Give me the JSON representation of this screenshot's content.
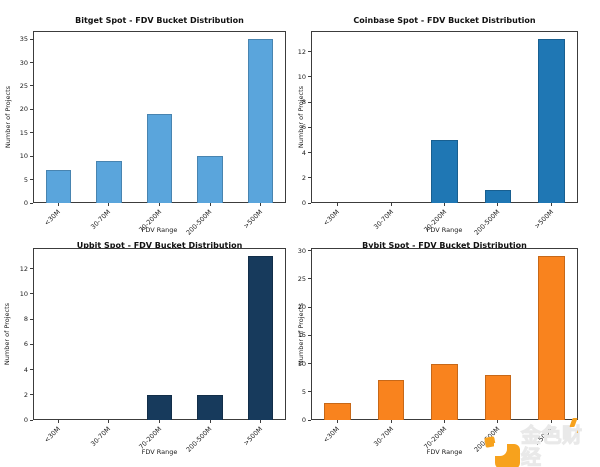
{
  "chart_data": [
    {
      "type": "bar",
      "title": "Bitget Spot - FDV Bucket Distribution",
      "categories": [
        "<30M",
        "30-70M",
        "70-200M",
        "200-500M",
        ">500M"
      ],
      "values": [
        7,
        9,
        19,
        10,
        35
      ],
      "xlabel": "FDV Range",
      "ylabel": "Number of Projects",
      "yticks": [
        0,
        5,
        10,
        15,
        20,
        25,
        30,
        35
      ],
      "ylim": [
        0,
        36.75
      ],
      "bar_color": "#5aa5dc",
      "grid": false,
      "legend": "none"
    },
    {
      "type": "bar",
      "title": "Coinbase Spot - FDV Bucket Distribution",
      "categories": [
        "<30M",
        "30-70M",
        "70-200M",
        "200-500M",
        ">500M"
      ],
      "values": [
        0,
        0,
        5,
        1,
        13
      ],
      "xlabel": "FDV Range",
      "ylabel": "Number of Projects",
      "yticks": [
        0,
        2,
        4,
        6,
        8,
        10,
        12
      ],
      "ylim": [
        0,
        13.65
      ],
      "bar_color": "#1f77b4",
      "grid": false,
      "legend": "none"
    },
    {
      "type": "bar",
      "title": "Upbit Spot - FDV Bucket Distribution",
      "categories": [
        "<30M",
        "30-70M",
        "70-200M",
        "200-500M",
        ">500M"
      ],
      "values": [
        0,
        0,
        2,
        2,
        13
      ],
      "xlabel": "FDV Range",
      "ylabel": "Number of Projects",
      "yticks": [
        0,
        2,
        4,
        6,
        8,
        10,
        12
      ],
      "ylim": [
        0,
        13.65
      ],
      "bar_color": "#173a5c",
      "grid": false,
      "legend": "none"
    },
    {
      "type": "bar",
      "title": "Bybit Spot - FDV Bucket Distribution",
      "categories": [
        "<30M",
        "30-70M",
        "70-200M",
        "200-500M",
        ">500M"
      ],
      "values": [
        3,
        7,
        10,
        8,
        29
      ],
      "xlabel": "FDV Range",
      "ylabel": "Number of Projects",
      "yticks": [
        0,
        5,
        10,
        15,
        20,
        25,
        30
      ],
      "ylim": [
        0,
        30.45
      ],
      "bar_color": "#f9831e",
      "grid": false,
      "legend": "none"
    }
  ],
  "watermark": {
    "text": "金色财经",
    "color": "#f6a21e"
  }
}
